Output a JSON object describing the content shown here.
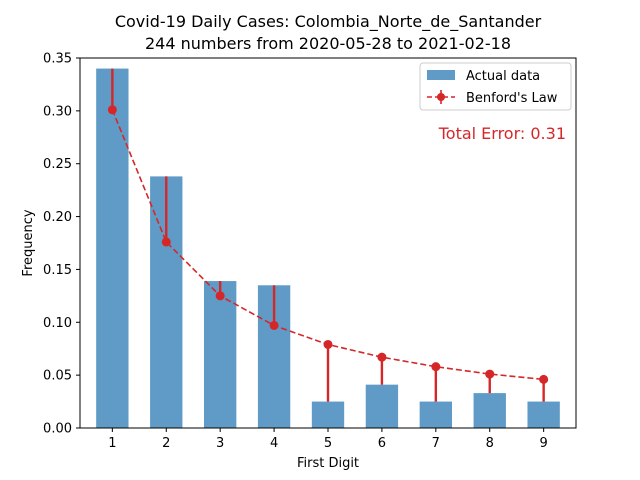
{
  "chart_data": {
    "type": "bar",
    "title": "Covid-19 Daily Cases: Colombia_Norte_de_Santander",
    "subtitle": "244 numbers from 2020-05-28 to 2021-02-18",
    "xlabel": "First Digit",
    "ylabel": "Frequency",
    "categories": [
      "1",
      "2",
      "3",
      "4",
      "5",
      "6",
      "7",
      "8",
      "9"
    ],
    "ylim": [
      0,
      0.35
    ],
    "yticks": [
      "0.00",
      "0.05",
      "0.10",
      "0.15",
      "0.20",
      "0.25",
      "0.30",
      "0.35"
    ],
    "series": [
      {
        "name": "Actual data",
        "type": "bar",
        "color": "#5f9bc6",
        "values": [
          0.34,
          0.238,
          0.139,
          0.135,
          0.025,
          0.041,
          0.025,
          0.033,
          0.025
        ]
      },
      {
        "name": "Benford's Law",
        "type": "line",
        "style": "dashed",
        "marker": "circle",
        "color": "#d62728",
        "values": [
          0.301,
          0.176,
          0.125,
          0.097,
          0.079,
          0.067,
          0.058,
          0.051,
          0.046
        ]
      }
    ],
    "annotation": "Total Error: 0.31",
    "annotation_color": "#d62728",
    "legend_position": "top-right",
    "grid": false
  }
}
